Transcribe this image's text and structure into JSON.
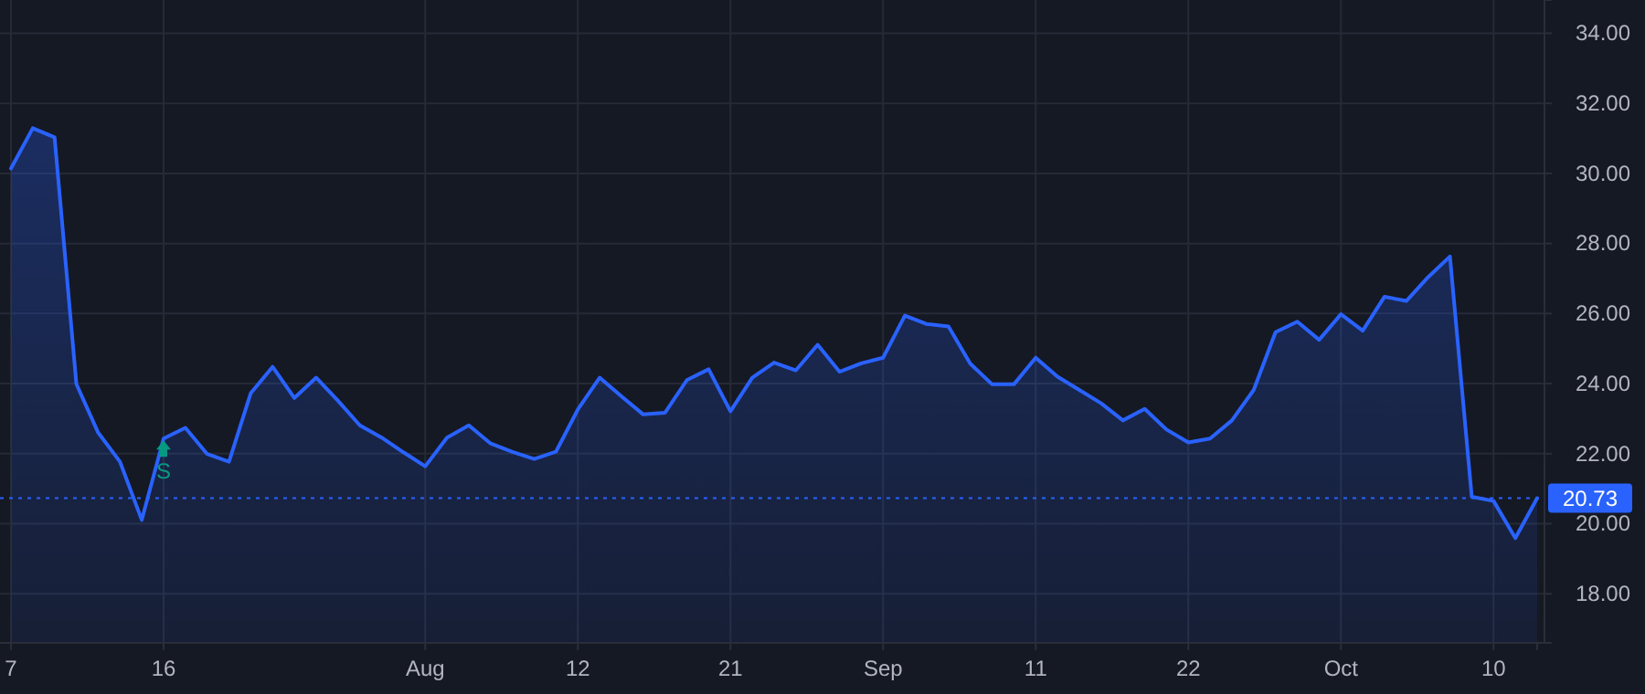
{
  "chart_data": {
    "type": "area",
    "categories": [
      "7",
      null,
      null,
      null,
      null,
      null,
      null,
      "16",
      null,
      null,
      null,
      null,
      null,
      null,
      null,
      null,
      null,
      null,
      null,
      "Aug",
      null,
      null,
      null,
      null,
      null,
      null,
      "12",
      null,
      null,
      null,
      null,
      null,
      null,
      "21",
      null,
      null,
      null,
      null,
      null,
      null,
      "Sep",
      null,
      null,
      null,
      null,
      null,
      null,
      "11",
      null,
      null,
      null,
      null,
      null,
      null,
      "22",
      null,
      null,
      null,
      null,
      null,
      null,
      "Oct",
      null,
      null,
      null,
      null,
      null,
      null,
      "10",
      null,
      null
    ],
    "series": [
      {
        "color": "#2962ff",
        "values": [
          30.14,
          31.29,
          31.03,
          23.99,
          22.6,
          21.77,
          20.11,
          22.43,
          22.74,
          21.99,
          21.77,
          23.73,
          24.48,
          23.59,
          24.17,
          23.51,
          22.81,
          22.46,
          22.04,
          21.64,
          22.46,
          22.81,
          22.29,
          22.05,
          21.85,
          22.06,
          23.26,
          24.17,
          23.64,
          23.12,
          23.17,
          24.1,
          24.41,
          23.21,
          24.17,
          24.6,
          24.38,
          25.11,
          24.34,
          24.58,
          24.74,
          25.94,
          25.7,
          25.63,
          24.57,
          23.98,
          23.98,
          24.74,
          24.2,
          23.82,
          23.44,
          22.95,
          23.28,
          22.69,
          22.32,
          22.43,
          22.95,
          23.82,
          25.47,
          25.77,
          25.25,
          25.98,
          25.51,
          26.48,
          26.36,
          27.04,
          27.63,
          20.77,
          20.65,
          19.59,
          20.73
        ]
      }
    ],
    "ylim": [
      16.6,
      34.95
    ],
    "yticks": [
      {
        "value": 18,
        "label": "18.00"
      },
      {
        "value": 20,
        "label": "20.00"
      },
      {
        "value": 22,
        "label": "22.00"
      },
      {
        "value": 24,
        "label": "24.00"
      },
      {
        "value": 26,
        "label": "26.00"
      },
      {
        "value": 28,
        "label": "28.00"
      },
      {
        "value": 30,
        "label": "30.00"
      },
      {
        "value": 32,
        "label": "32.00"
      },
      {
        "value": 34,
        "label": "34.00"
      }
    ],
    "grid": true,
    "ref_lines": [
      {
        "axis": "y",
        "value": 20.73,
        "label": "20.73",
        "color": "#2962ff",
        "line_style": "dotted"
      }
    ],
    "annotations": [
      {
        "text": "S",
        "x": "16",
        "y": 22.43
      }
    ]
  }
}
